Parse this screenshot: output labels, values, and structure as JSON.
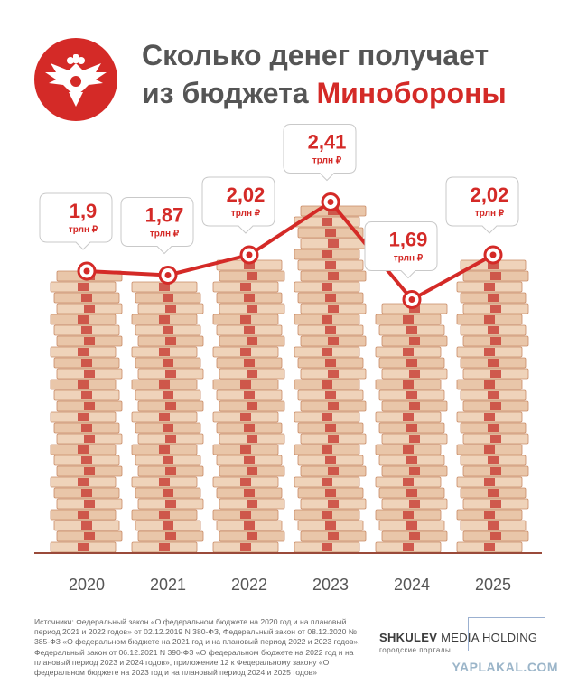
{
  "header": {
    "title_line1": "Сколько денег получает",
    "title_line2_plain": "из бюджета ",
    "title_line2_accent": "Минобороны"
  },
  "colors": {
    "accent": "#d42a27",
    "money_light": "#e9c6a9",
    "money_dark": "#c98b66",
    "text": "#555555"
  },
  "chart_data": {
    "type": "line",
    "categories": [
      "2020",
      "2021",
      "2022",
      "2023",
      "2024",
      "2025"
    ],
    "values": [
      1.9,
      1.87,
      2.02,
      2.41,
      1.69,
      2.02
    ],
    "labels": [
      "1,9",
      "1,87",
      "2,02",
      "2,41",
      "1,69",
      "2,02"
    ],
    "unit": "трлн ₽",
    "title": "Сколько денег получает из бюджета Минобороны",
    "bars": "stacks of banknotes",
    "grid": false,
    "legend": "none"
  },
  "footer": {
    "sources": "Источники: Федеральный закон «О федеральном бюджете на 2020 год и на плановый период 2021 и 2022 годов» от 02.12.2019 N 380-ФЗ, Федеральный закон от 08.12.2020 № 385-ФЗ «О федеральном бюджете на 2021 год и на плановый период 2022 и 2023 годов», Федеральный закон от 06.12.2021 N 390-ФЗ «О федеральном бюджете на 2022 год и на плановый период 2023 и 2024 годов», приложение 12 к Федеральному закону «О федеральном бюджете на 2023 год и на плановый период 2024 и 2025 годов»",
    "brand_bold": "SHKULEV",
    "brand_rest": " MEDIA HOLDING",
    "brand_sub": "городские порталы",
    "watermark": "YAPLAKAL.COM"
  }
}
